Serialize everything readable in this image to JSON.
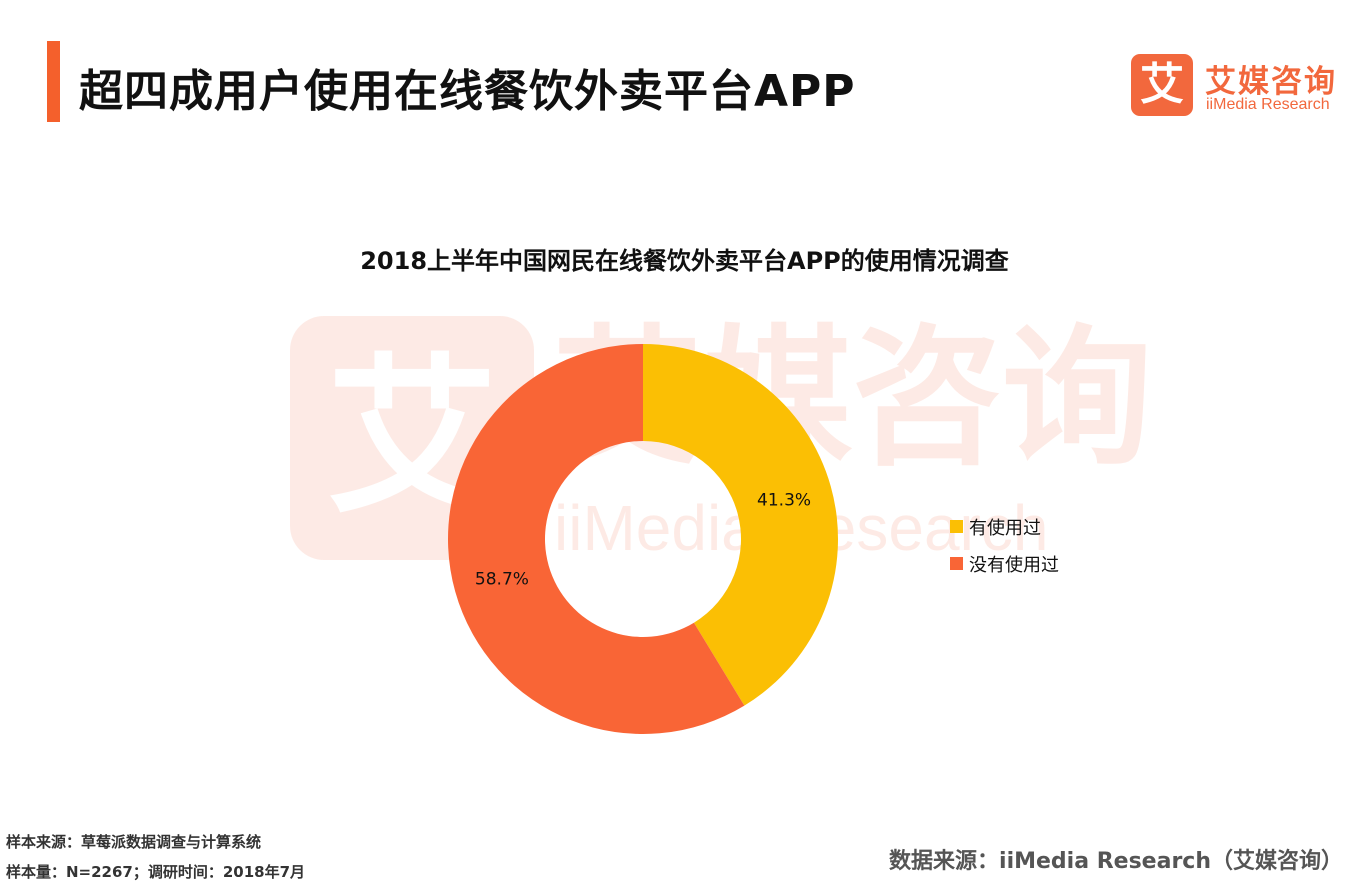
{
  "header": {
    "title": "超四成用户使用在线餐饮外卖平台APP",
    "accent_color": "#f4602c"
  },
  "logo": {
    "mark_char": "艾",
    "name_cn": "艾媒咨询",
    "name_en": "iiMedia Research",
    "color": "#f2683d"
  },
  "chart_data": {
    "type": "pie",
    "variant": "donut",
    "title": "2018上半年中国网民在线餐饮外卖平台APP的使用情况调查",
    "categories": [
      "有使用过",
      "没有使用过"
    ],
    "values": [
      41.3,
      58.7
    ],
    "labels": [
      "41.3%",
      "58.7%"
    ],
    "colors": [
      "#fbbf04",
      "#f96536"
    ],
    "legend_position": "right"
  },
  "footer": {
    "sample_source": "样本来源：草莓派数据调查与计算系统",
    "sample_size": "样本量：N=2267；调研时间：2018年7月",
    "data_source": "数据来源：iiMedia Research（艾媒咨询）"
  }
}
